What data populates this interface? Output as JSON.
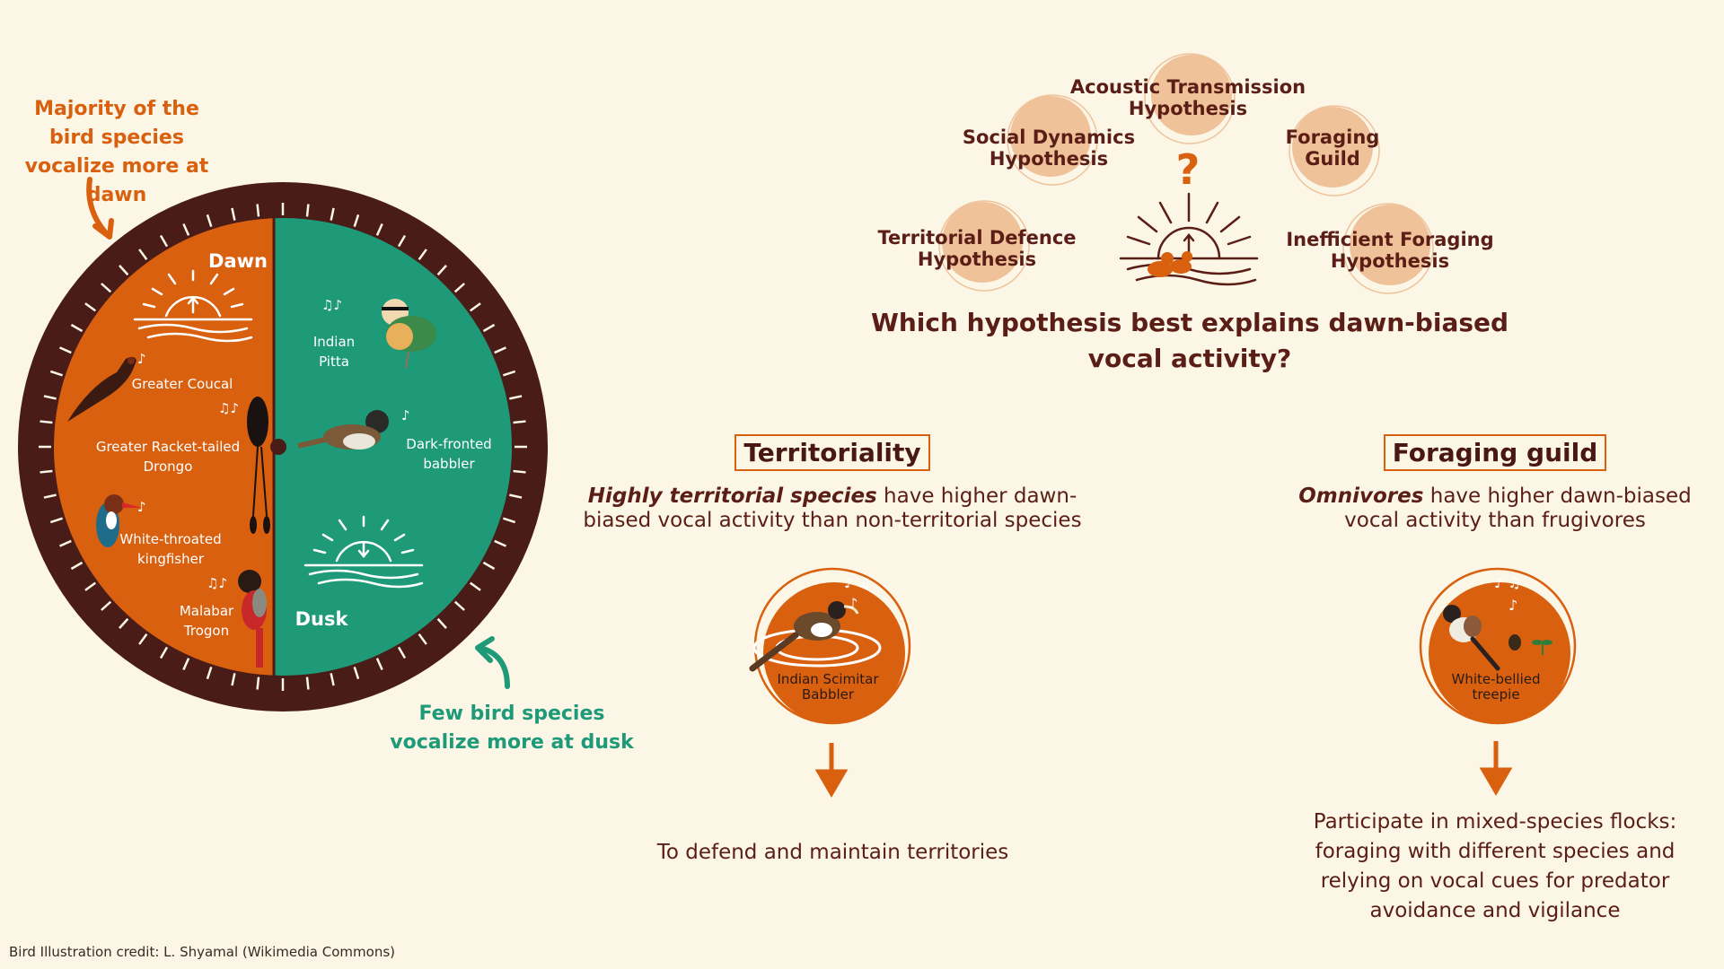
{
  "callouts": {
    "dawn": "Majority of the bird species vocalize more at dawn",
    "dusk": "Few bird species vocalize more at dusk"
  },
  "clock": {
    "dawn_label": "Dawn",
    "dusk_label": "Dusk",
    "dawn_birds": [
      "Greater Coucal",
      "Greater Racket-tailed Drongo",
      "White-throated kingfisher",
      "Malabar Trogon"
    ],
    "dusk_birds": [
      "Indian Pitta",
      "Dark-fronted babbler"
    ]
  },
  "hypotheses": [
    "Acoustic Transmission Hypothesis",
    "Social Dynamics Hypothesis",
    "Foraging Guild",
    "Territorial Defence Hypothesis",
    "Inefficient Foraging Hypothesis"
  ],
  "question": "Which hypothesis best explains dawn-biased vocal activity?",
  "territoriality": {
    "title": "Territoriality",
    "desc_bold": "Highly territorial species",
    "desc_rest": " have higher dawn-biased vocal activity than non-territorial species",
    "bird": "Indian Scimitar Babbler",
    "conclusion": "To defend and maintain territories"
  },
  "foraging": {
    "title": "Foraging guild",
    "desc_bold": "Omnivores",
    "desc_rest": " have higher dawn-biased vocal activity than frugivores",
    "bird": "White-bellied treepie",
    "conclusion": "Participate in mixed-species flocks: foraging with different species and relying on vocal cues for predator avoidance and vigilance"
  },
  "credit": "Bird Illustration credit: L. Shyamal (Wikimedia Commons)",
  "colors": {
    "dawn": "#d9600f",
    "dusk": "#1e9a78",
    "rim": "#4a1c18",
    "background": "#fbf6e6",
    "hypothesis_circle": "#f0c29a",
    "text_dark": "#5a1e16"
  }
}
